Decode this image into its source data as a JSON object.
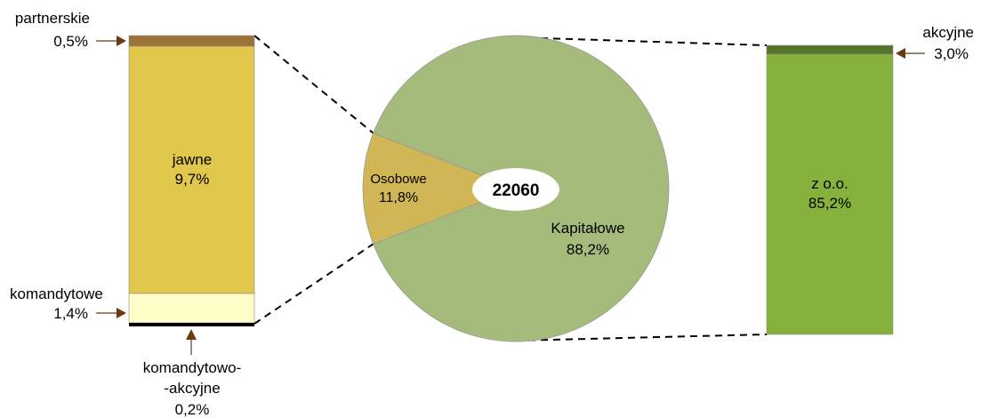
{
  "chart_data": {
    "type": "bar-of-pie",
    "center_total": "22060",
    "colors": {
      "kapitalowe": "#a4bb7b",
      "osobowe": "#d1b655",
      "partnerskie": "#9a7339",
      "jawne": "#e1c74b",
      "komandytowe": "#fffdc8",
      "komandytowo_akcyjne": "#000000",
      "z_oo": "#87b13d",
      "akcyjne": "#56732c",
      "arrow": "#6b3a10"
    },
    "pie": [
      {
        "label": "Osobowe",
        "value": 11.8,
        "display": "11,8%"
      },
      {
        "label": "Kapitałowe",
        "value": 88.2,
        "display": "88,2%"
      }
    ],
    "left_bar": [
      {
        "label": "partnerskie",
        "value": 0.5,
        "display": "0,5%"
      },
      {
        "label": "jawne",
        "value": 9.7,
        "display": "9,7%"
      },
      {
        "label": "komandytowe",
        "value": 1.4,
        "display": "1,4%"
      },
      {
        "label_line1": "komandytowo-",
        "label_line2": "-akcyjne",
        "value": 0.2,
        "display": "0,2%"
      }
    ],
    "right_bar": [
      {
        "label": "akcyjne",
        "value": 3.0,
        "display": "3,0%"
      },
      {
        "label": "z o.o.",
        "value": 85.2,
        "display": "85,2%"
      }
    ]
  }
}
